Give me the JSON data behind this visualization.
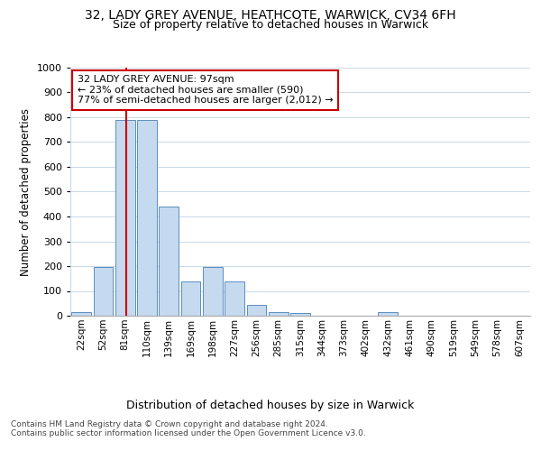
{
  "title1": "32, LADY GREY AVENUE, HEATHCOTE, WARWICK, CV34 6FH",
  "title2": "Size of property relative to detached houses in Warwick",
  "xlabel": "Distribution of detached houses by size in Warwick",
  "ylabel": "Number of detached properties",
  "categories": [
    "22sqm",
    "52sqm",
    "81sqm",
    "110sqm",
    "139sqm",
    "169sqm",
    "198sqm",
    "227sqm",
    "256sqm",
    "285sqm",
    "315sqm",
    "344sqm",
    "373sqm",
    "402sqm",
    "432sqm",
    "461sqm",
    "490sqm",
    "519sqm",
    "549sqm",
    "578sqm",
    "607sqm"
  ],
  "values": [
    15,
    195,
    790,
    790,
    440,
    140,
    195,
    140,
    45,
    15,
    10,
    0,
    0,
    0,
    15,
    0,
    0,
    0,
    0,
    0,
    0
  ],
  "bar_color": "#c5d9ef",
  "bar_edge_color": "#5a8fc0",
  "vline_color": "#cc0000",
  "ylim": [
    0,
    1000
  ],
  "yticks": [
    0,
    100,
    200,
    300,
    400,
    500,
    600,
    700,
    800,
    900,
    1000
  ],
  "annotation_line1": "32 LADY GREY AVENUE: 97sqm",
  "annotation_line2": "← 23% of detached houses are smaller (590)",
  "annotation_line3": "77% of semi-detached houses are larger (2,012) →",
  "annotation_box_color": "#ffffff",
  "annotation_box_edge": "#cc0000",
  "footer1": "Contains HM Land Registry data © Crown copyright and database right 2024.",
  "footer2": "Contains public sector information licensed under the Open Government Licence v3.0.",
  "background_color": "#ffffff",
  "grid_color": "#c8d8e8"
}
